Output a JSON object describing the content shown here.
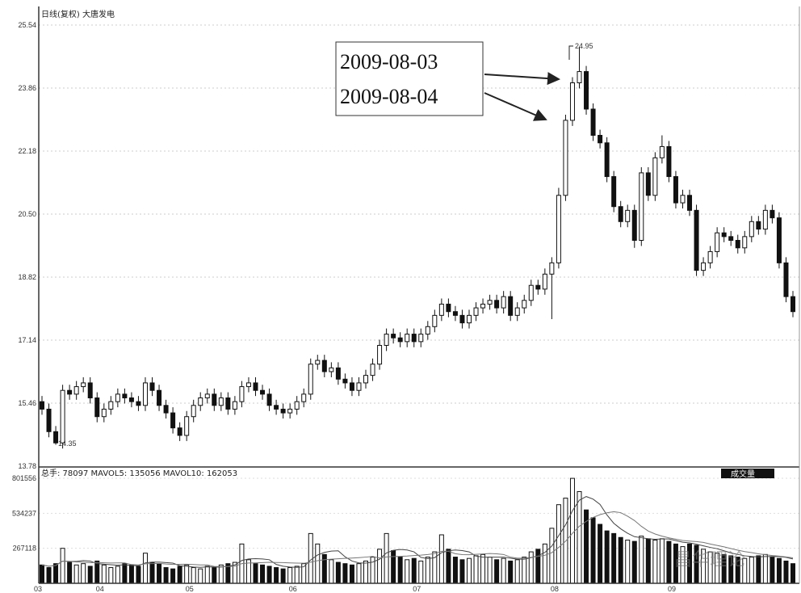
{
  "header": {
    "title": "日线(复权) 大唐发电"
  },
  "volume_header": {
    "text": "总手: 78097 MAVOL5: 135056 MAVOL10: 162053",
    "button": "成交量"
  },
  "annotations": {
    "date1": "2009-08-03",
    "date2": "2009-08-04",
    "high_label": "24.95",
    "low_label": "14.35"
  },
  "watermark": "昌华理论",
  "chart_data": [
    {
      "type": "candlestick",
      "title": "日线(复权) 大唐发电",
      "ylim": [
        13.78,
        25.54
      ],
      "yticks": [
        "25.54",
        "23.86",
        "22.18",
        "20.50",
        "18.82",
        "17.14",
        "15.46",
        "13.78"
      ],
      "xticks": [
        "03",
        "04",
        "05",
        "06",
        "07",
        "08",
        "09"
      ],
      "xtick_index": [
        0,
        9,
        22,
        37,
        55,
        75,
        92
      ],
      "open": [
        15.5,
        15.3,
        14.7,
        14.4,
        15.8,
        15.7,
        15.9,
        16.0,
        15.6,
        15.1,
        15.3,
        15.5,
        15.7,
        15.6,
        15.5,
        15.4,
        16.0,
        15.8,
        15.4,
        15.2,
        14.8,
        14.6,
        15.1,
        15.4,
        15.6,
        15.7,
        15.4,
        15.6,
        15.3,
        15.5,
        15.9,
        16.0,
        15.8,
        15.7,
        15.4,
        15.3,
        15.2,
        15.3,
        15.5,
        15.7,
        16.5,
        16.6,
        16.3,
        16.4,
        16.1,
        16.0,
        15.8,
        16.0,
        16.2,
        16.5,
        17.0,
        17.3,
        17.2,
        17.1,
        17.3,
        17.1,
        17.3,
        17.5,
        17.8,
        18.1,
        17.9,
        17.8,
        17.6,
        17.8,
        18.0,
        18.1,
        18.2,
        18.0,
        18.3,
        17.8,
        18.0,
        18.2,
        18.6,
        18.5,
        18.9,
        19.2,
        21.0,
        23.0,
        24.0,
        24.3,
        23.3,
        22.6,
        22.4,
        21.5,
        20.7,
        20.3,
        20.6,
        19.8,
        21.6,
        21.0,
        22.0,
        22.3,
        21.5,
        20.8,
        21.0,
        20.6,
        19.0,
        19.2,
        19.5,
        20.0,
        19.9,
        19.8,
        19.6,
        19.9,
        20.3,
        20.1,
        20.6,
        20.4,
        19.2,
        18.3
      ],
      "close": [
        15.3,
        14.7,
        14.4,
        15.8,
        15.7,
        15.9,
        16.0,
        15.6,
        15.1,
        15.3,
        15.5,
        15.7,
        15.6,
        15.5,
        15.4,
        16.0,
        15.8,
        15.4,
        15.2,
        14.8,
        14.6,
        15.1,
        15.4,
        15.6,
        15.7,
        15.4,
        15.6,
        15.3,
        15.5,
        15.9,
        16.0,
        15.8,
        15.7,
        15.4,
        15.3,
        15.2,
        15.3,
        15.5,
        15.7,
        16.5,
        16.6,
        16.3,
        16.4,
        16.1,
        16.0,
        15.8,
        16.0,
        16.2,
        16.5,
        17.0,
        17.3,
        17.2,
        17.1,
        17.3,
        17.1,
        17.3,
        17.5,
        17.8,
        18.1,
        17.9,
        17.8,
        17.6,
        17.8,
        18.0,
        18.1,
        18.2,
        18.0,
        18.3,
        17.8,
        18.0,
        18.2,
        18.6,
        18.5,
        18.9,
        19.2,
        21.0,
        23.0,
        24.0,
        24.3,
        23.3,
        22.6,
        22.4,
        21.5,
        20.7,
        20.3,
        20.6,
        19.8,
        21.6,
        21.0,
        22.0,
        22.3,
        21.5,
        20.8,
        21.0,
        20.6,
        19.0,
        19.2,
        19.5,
        20.0,
        19.9,
        19.8,
        19.6,
        19.9,
        20.3,
        20.1,
        20.6,
        20.4,
        19.2,
        18.3,
        17.9
      ],
      "high_overrides": {
        "75": 21.2,
        "78": 24.95,
        "90": 22.6
      },
      "low_overrides": {
        "2": 14.35,
        "74": 17.7,
        "86": 19.6
      }
    },
    {
      "type": "bar",
      "title": "成交量",
      "ylim": [
        0,
        801556
      ],
      "yticks": [
        "801556",
        "534237",
        "267118"
      ],
      "volume": [
        140000,
        120000,
        150000,
        267000,
        160000,
        140000,
        150000,
        130000,
        170000,
        140000,
        120000,
        130000,
        150000,
        140000,
        130000,
        230000,
        160000,
        150000,
        120000,
        110000,
        130000,
        140000,
        120000,
        110000,
        130000,
        120000,
        140000,
        150000,
        160000,
        300000,
        180000,
        150000,
        140000,
        130000,
        120000,
        110000,
        120000,
        130000,
        150000,
        380000,
        300000,
        220000,
        180000,
        160000,
        150000,
        140000,
        150000,
        170000,
        200000,
        260000,
        380000,
        250000,
        200000,
        180000,
        190000,
        170000,
        200000,
        240000,
        370000,
        260000,
        200000,
        180000,
        190000,
        210000,
        220000,
        200000,
        180000,
        190000,
        170000,
        180000,
        200000,
        240000,
        260000,
        300000,
        420000,
        600000,
        650000,
        801000,
        700000,
        560000,
        500000,
        450000,
        400000,
        380000,
        350000,
        330000,
        320000,
        360000,
        340000,
        330000,
        340000,
        320000,
        300000,
        280000,
        300000,
        290000,
        260000,
        240000,
        230000,
        220000,
        210000,
        200000,
        190000,
        200000,
        210000,
        220000,
        200000,
        190000,
        170000,
        150000
      ]
    }
  ]
}
